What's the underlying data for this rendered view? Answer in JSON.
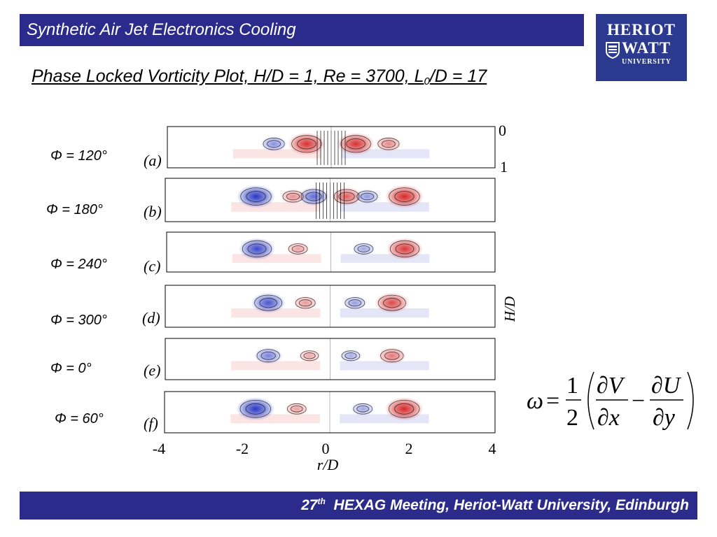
{
  "header": {
    "title": "Synthetic Air Jet Electronics Cooling"
  },
  "logo": {
    "line1": "HERIOT",
    "line2": "WATT",
    "line3": "UNIVERSITY"
  },
  "subtitle": {
    "main": "Phase Locked Vorticity Plot, H/D = 1, Re = 3700, L",
    "sub": "0",
    "tail": "/D = 17"
  },
  "panels": [
    {
      "phase": "Φ = 120°",
      "label": "(a)"
    },
    {
      "phase": "Φ = 180°",
      "label": "(b)"
    },
    {
      "phase": "Φ = 240°",
      "label": "(c)"
    },
    {
      "phase": "Φ = 300°",
      "label": "(d)"
    },
    {
      "phase": "Φ = 0°",
      "label": "(e)"
    },
    {
      "phase": "Φ = 60°",
      "label": "(f)"
    }
  ],
  "axes": {
    "xlabel": "r/D",
    "ylabel": "H/D",
    "xticks": [
      "-4",
      "-2",
      "0",
      "2",
      "4"
    ],
    "yticks": [
      "0",
      "1"
    ]
  },
  "colors": {
    "bar": "#2b2b8c",
    "logo": "#2b3a8e",
    "positive": "#d42020",
    "negative": "#2030c0"
  },
  "equation": {
    "lhs": "ω",
    "eq": "=",
    "num1": "1",
    "den1": "2",
    "dV": "∂V",
    "dx": "∂x",
    "minus": "−",
    "dU": "∂U",
    "dy": "∂y"
  },
  "footer": {
    "ordinal": "27",
    "ordinal_sup": "th",
    "text": "HEXAG Meeting, Heriot-Watt University, Edinburgh"
  }
}
